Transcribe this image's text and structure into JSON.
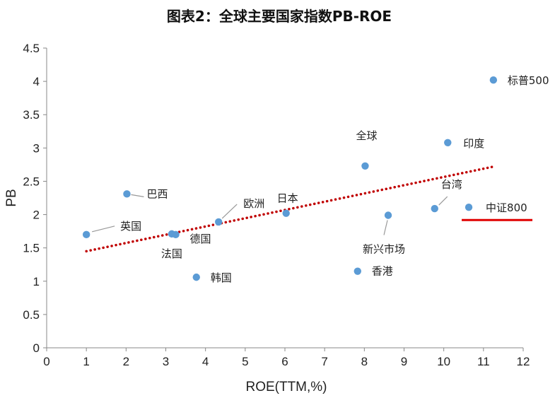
{
  "chart_data": {
    "type": "scatter",
    "title": "图表2：全球主要国家指数PB-ROE",
    "xlabel": "ROE(TTM,%)",
    "ylabel": "PB",
    "xlim": [
      0,
      12
    ],
    "ylim": [
      0,
      4.5
    ],
    "xticks": [
      "0",
      "1",
      "2",
      "3",
      "4",
      "5",
      "6",
      "7",
      "8",
      "9",
      "10",
      "11",
      "12"
    ],
    "yticks": [
      "0",
      "0.5",
      "1",
      "1.5",
      "2",
      "2.5",
      "3",
      "3.5",
      "4",
      "4.5"
    ],
    "grid": false,
    "point_color": "#5B9BD5",
    "trendline": {
      "type": "linear",
      "style": "dotted",
      "color": "#C00000",
      "x": [
        1,
        11.25
      ],
      "y": [
        1.45,
        2.72
      ]
    },
    "highlight": {
      "label": "中证800",
      "style": "underline",
      "color": "#E00000"
    },
    "points": [
      {
        "label": "英国",
        "x": 1.0,
        "y": 1.7
      },
      {
        "label": "巴西",
        "x": 2.02,
        "y": 2.31
      },
      {
        "label": "法国",
        "x": 3.15,
        "y": 1.71
      },
      {
        "label": "德国",
        "x": 3.25,
        "y": 1.7
      },
      {
        "label": "韩国",
        "x": 3.77,
        "y": 1.06
      },
      {
        "label": "欧洲",
        "x": 4.33,
        "y": 1.89
      },
      {
        "label": "日本",
        "x": 6.03,
        "y": 2.02
      },
      {
        "label": "香港",
        "x": 7.83,
        "y": 1.15
      },
      {
        "label": "全球",
        "x": 8.02,
        "y": 2.73
      },
      {
        "label": "新兴市场",
        "x": 8.6,
        "y": 1.99
      },
      {
        "label": "台湾",
        "x": 9.77,
        "y": 2.09
      },
      {
        "label": "印度",
        "x": 10.1,
        "y": 3.08
      },
      {
        "label": "中证800",
        "x": 10.63,
        "y": 2.11
      },
      {
        "label": "标普500",
        "x": 11.25,
        "y": 4.02
      }
    ]
  }
}
